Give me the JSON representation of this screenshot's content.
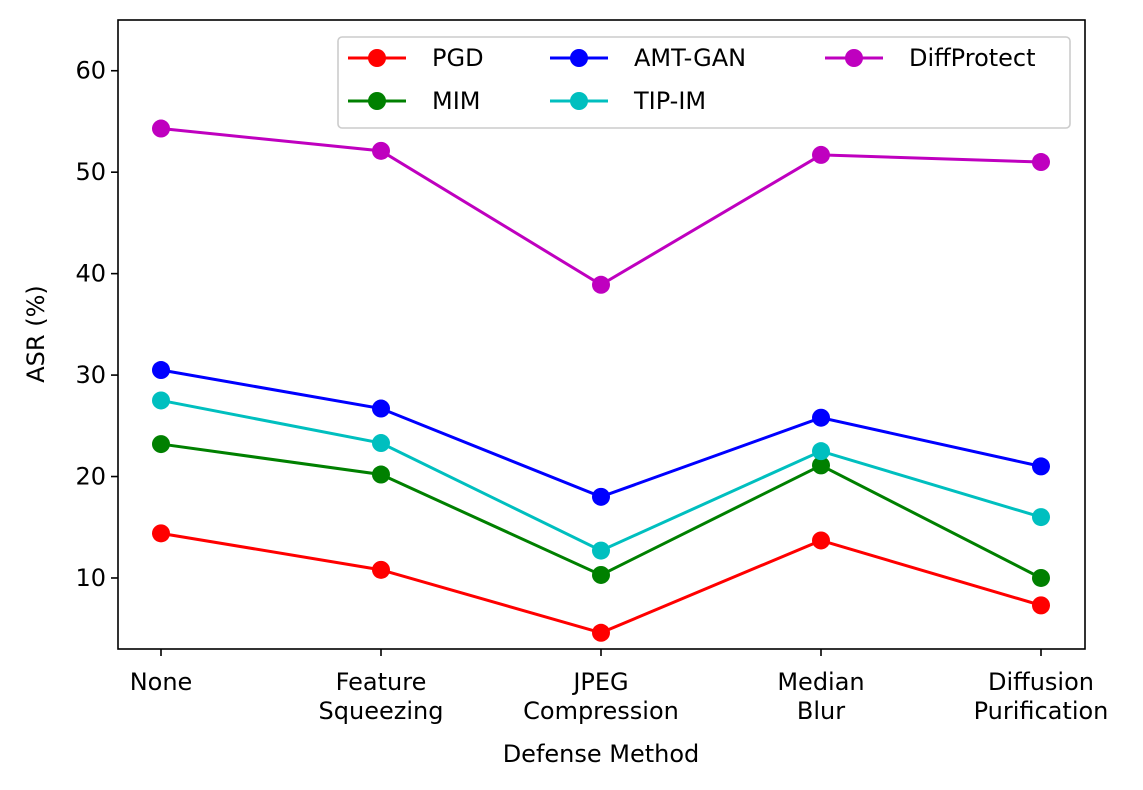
{
  "chart_data": {
    "type": "line",
    "title": "",
    "xlabel": "Defense Method",
    "ylabel": "ASR (%)",
    "categories": [
      [
        "None"
      ],
      [
        "Feature",
        "Squeezing"
      ],
      [
        "JPEG",
        "Compression"
      ],
      [
        "Median",
        "Blur"
      ],
      [
        "Diffusion",
        "Purification"
      ]
    ],
    "ylim": [
      3,
      65
    ],
    "yticks": [
      10,
      20,
      30,
      40,
      50,
      60
    ],
    "grid": false,
    "legend_position": "top-right",
    "series": [
      {
        "name": "PGD",
        "color": "#ff0000",
        "values": [
          14.4,
          10.8,
          4.6,
          13.7,
          7.3
        ]
      },
      {
        "name": "MIM",
        "color": "#008000",
        "values": [
          23.2,
          20.2,
          10.3,
          21.1,
          10.0
        ]
      },
      {
        "name": "AMT-GAN",
        "color": "#0000ff",
        "values": [
          30.5,
          26.7,
          18.0,
          25.8,
          21.0
        ]
      },
      {
        "name": "TIP-IM",
        "color": "#00bfbf",
        "values": [
          27.5,
          23.3,
          12.7,
          22.5,
          16.0
        ]
      },
      {
        "name": "DiffProtect",
        "color": "#bf00bf",
        "values": [
          54.3,
          52.1,
          38.9,
          51.7,
          51.0
        ]
      }
    ]
  }
}
